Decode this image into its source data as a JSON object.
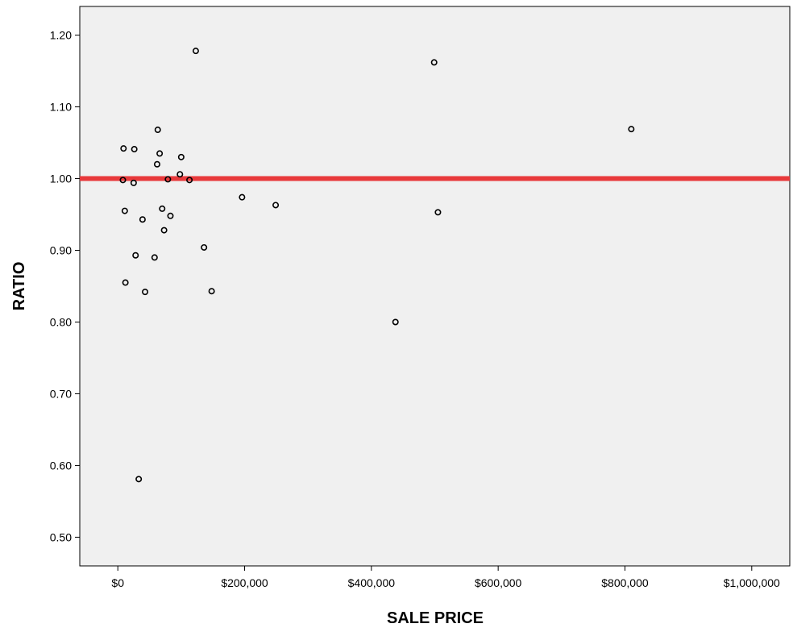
{
  "chart_data": {
    "type": "scatter",
    "title": "",
    "xlabel": "SALE PRICE",
    "ylabel": "RATIO",
    "xlim": [
      -60000,
      1060000
    ],
    "ylim": [
      0.46,
      1.24
    ],
    "xticks": [
      0,
      200000,
      400000,
      600000,
      800000,
      1000000
    ],
    "xtick_labels": [
      "$0",
      "$200,000",
      "$400,000",
      "$600,000",
      "$800,000",
      "$1,000,000"
    ],
    "yticks": [
      0.5,
      0.6,
      0.7,
      0.8,
      0.9,
      1.0,
      1.1,
      1.2
    ],
    "ytick_labels": [
      "0.50",
      "0.60",
      "0.70",
      "0.80",
      "0.90",
      "1.00",
      "1.10",
      "1.20"
    ],
    "grid": false,
    "background_color": "#f0f0f0",
    "marker_color": "#000000",
    "reference_line": {
      "y": 1.0,
      "color": "#e8393b"
    },
    "points": [
      {
        "x": 123000,
        "y": 1.178
      },
      {
        "x": 499000,
        "y": 1.162
      },
      {
        "x": 810000,
        "y": 1.069
      },
      {
        "x": 63000,
        "y": 1.068
      },
      {
        "x": 9000,
        "y": 1.042
      },
      {
        "x": 26000,
        "y": 1.041
      },
      {
        "x": 66000,
        "y": 1.035
      },
      {
        "x": 100000,
        "y": 1.03
      },
      {
        "x": 62000,
        "y": 1.02
      },
      {
        "x": 98000,
        "y": 1.006
      },
      {
        "x": 79000,
        "y": 0.999
      },
      {
        "x": 113000,
        "y": 0.998
      },
      {
        "x": 8000,
        "y": 0.998
      },
      {
        "x": 25000,
        "y": 0.994
      },
      {
        "x": 196000,
        "y": 0.974
      },
      {
        "x": 249000,
        "y": 0.963
      },
      {
        "x": 70000,
        "y": 0.958
      },
      {
        "x": 11000,
        "y": 0.955
      },
      {
        "x": 505000,
        "y": 0.953
      },
      {
        "x": 83000,
        "y": 0.948
      },
      {
        "x": 39000,
        "y": 0.943
      },
      {
        "x": 73000,
        "y": 0.928
      },
      {
        "x": 136000,
        "y": 0.904
      },
      {
        "x": 28000,
        "y": 0.893
      },
      {
        "x": 58000,
        "y": 0.89
      },
      {
        "x": 12000,
        "y": 0.855
      },
      {
        "x": 148000,
        "y": 0.843
      },
      {
        "x": 43000,
        "y": 0.842
      },
      {
        "x": 438000,
        "y": 0.8
      },
      {
        "x": 33000,
        "y": 0.581
      }
    ]
  }
}
